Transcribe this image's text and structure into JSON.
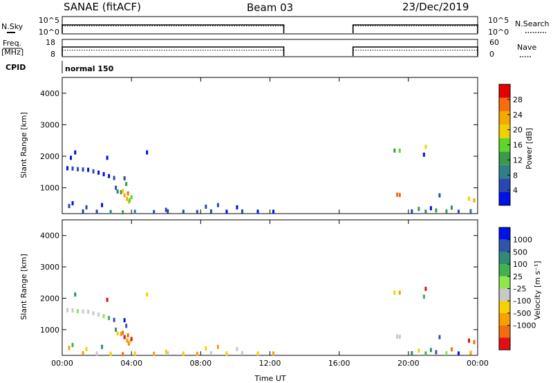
{
  "header": {
    "station": "SANAE (fitACF)",
    "beam": "Beam 03",
    "date": "23/Dec/2019"
  },
  "control_panels": {
    "nsky": {
      "label": "N.Sky",
      "yticks": [
        "10^5",
        "10^0"
      ]
    },
    "nsearch": {
      "label": "N.Search",
      "yticks": [
        "10^5",
        "10^0"
      ]
    },
    "freq": {
      "label_line1": "Freq.",
      "label_line2": "[MHz]",
      "yticks": [
        "18",
        "8"
      ]
    },
    "nave": {
      "label": "Nave",
      "yticks": [
        "60",
        "0"
      ]
    },
    "cpid": {
      "label": "CPID",
      "value": "normal 150"
    },
    "data_segments_hours": [
      [
        0,
        12.8
      ],
      [
        16.8,
        24
      ]
    ]
  },
  "colors": {
    "power_scale": [
      "#0010e8",
      "#2848b0",
      "#2f7f8a",
      "#3a9a4a",
      "#5ed62a",
      "#f0d000",
      "#f7a800",
      "#f56d0c",
      "#e60000"
    ],
    "velocity_scale": [
      "#0010e8",
      "#2f55a8",
      "#2f8a77",
      "#3fb14d",
      "#8ee84a",
      "#c8c8c8",
      "#f6d000",
      "#f7a000",
      "#f36d10",
      "#e30f0f"
    ]
  },
  "chart_data": [
    {
      "type": "heatmap",
      "name": "power",
      "xlabel": "",
      "ylabel": "Slant Range [km]",
      "xlim": [
        0,
        24
      ],
      "ylim": [
        180,
        4500
      ],
      "yticks": [
        1000,
        2000,
        3000,
        4000
      ],
      "colorbar": {
        "label": "Power [dB]",
        "ticks": [
          "4",
          "8",
          "12",
          "16",
          "20",
          "24",
          "28"
        ],
        "range": [
          0,
          32
        ]
      },
      "points": [
        [
          0.3,
          1620,
          3
        ],
        [
          0.6,
          1610,
          4
        ],
        [
          0.9,
          1590,
          5
        ],
        [
          1.2,
          1580,
          4
        ],
        [
          1.5,
          1570,
          3
        ],
        [
          1.8,
          1520,
          4
        ],
        [
          2.1,
          1480,
          3
        ],
        [
          2.4,
          1430,
          2
        ],
        [
          2.7,
          1370,
          3
        ],
        [
          3.0,
          1310,
          4
        ],
        [
          0.5,
          1950,
          2
        ],
        [
          0.75,
          2120,
          3
        ],
        [
          3.1,
          1000,
          6
        ],
        [
          3.2,
          880,
          10
        ],
        [
          3.4,
          860,
          14
        ],
        [
          3.5,
          900,
          18
        ],
        [
          3.6,
          760,
          22
        ],
        [
          3.75,
          650,
          24
        ],
        [
          3.85,
          560,
          20
        ],
        [
          3.9,
          600,
          16
        ],
        [
          3.7,
          1120,
          12
        ],
        [
          3.6,
          1300,
          6
        ],
        [
          3.8,
          820,
          26
        ],
        [
          4.0,
          700,
          15
        ],
        [
          4.9,
          2120,
          2
        ],
        [
          2.6,
          1950,
          3
        ],
        [
          0.4,
          420,
          5
        ],
        [
          0.6,
          510,
          3
        ],
        [
          1.4,
          380,
          4
        ],
        [
          2.3,
          450,
          3
        ],
        [
          1.2,
          250,
          6
        ],
        [
          2.0,
          240,
          4
        ],
        [
          2.8,
          230,
          8
        ],
        [
          3.5,
          220,
          12
        ],
        [
          4.2,
          240,
          9
        ],
        [
          5.3,
          230,
          7
        ],
        [
          6.1,
          250,
          5
        ],
        [
          7.0,
          240,
          4
        ],
        [
          7.8,
          230,
          6
        ],
        [
          8.6,
          250,
          4
        ],
        [
          9.5,
          240,
          3
        ],
        [
          10.4,
          250,
          4
        ],
        [
          11.3,
          240,
          3
        ],
        [
          12.2,
          240,
          2
        ],
        [
          8.3,
          400,
          5
        ],
        [
          9.0,
          450,
          4
        ],
        [
          10.1,
          380,
          3
        ],
        [
          6.0,
          300,
          4
        ],
        [
          19.2,
          2180,
          12
        ],
        [
          19.5,
          2180,
          15
        ],
        [
          19.35,
          780,
          26
        ],
        [
          19.5,
          770,
          28
        ],
        [
          21.0,
          2300,
          18
        ],
        [
          20.9,
          2050,
          3
        ],
        [
          21.8,
          760,
          4
        ],
        [
          22.5,
          370,
          8
        ],
        [
          23.5,
          650,
          18
        ],
        [
          23.8,
          600,
          22
        ],
        [
          20.2,
          250,
          5
        ],
        [
          21.0,
          240,
          8
        ],
        [
          21.6,
          280,
          11
        ],
        [
          22.2,
          250,
          14
        ],
        [
          22.9,
          240,
          6
        ],
        [
          23.6,
          260,
          9
        ],
        [
          20.6,
          330,
          12
        ],
        [
          21.3,
          350,
          3
        ]
      ]
    },
    {
      "type": "heatmap",
      "name": "velocity",
      "xlabel": "Time UT",
      "ylabel": "Slant Range [km]",
      "xlim": [
        0,
        24
      ],
      "ylim": [
        180,
        4500
      ],
      "yticks": [
        1000,
        2000,
        3000,
        4000
      ],
      "xticks": [
        "00:00",
        "04:00",
        "08:00",
        "12:00",
        "16:00",
        "20:00",
        "00:00"
      ],
      "xtick_hours": [
        0,
        4,
        8,
        12,
        16,
        20,
        24
      ],
      "colorbar": {
        "label": "Velocity [m s⁻¹]",
        "ticks": [
          "1000",
          "500",
          "100",
          "25",
          "–25",
          "–100",
          "–500",
          "–1000"
        ]
      },
      "points": [
        [
          0.3,
          1620,
          5
        ],
        [
          0.6,
          1610,
          5
        ],
        [
          0.9,
          1590,
          4
        ],
        [
          1.2,
          1580,
          5
        ],
        [
          1.5,
          1570,
          5
        ],
        [
          1.8,
          1520,
          5
        ],
        [
          2.1,
          1480,
          5
        ],
        [
          2.4,
          1430,
          4
        ],
        [
          2.7,
          1370,
          3
        ],
        [
          3.0,
          1310,
          1
        ],
        [
          0.75,
          2120,
          2
        ],
        [
          3.1,
          1000,
          2
        ],
        [
          3.2,
          880,
          6
        ],
        [
          3.4,
          860,
          7
        ],
        [
          3.5,
          900,
          8
        ],
        [
          3.6,
          760,
          9
        ],
        [
          3.75,
          650,
          7
        ],
        [
          3.85,
          560,
          8
        ],
        [
          3.9,
          600,
          6
        ],
        [
          3.7,
          1120,
          1
        ],
        [
          3.6,
          1300,
          0
        ],
        [
          3.8,
          820,
          8
        ],
        [
          4.0,
          700,
          9
        ],
        [
          4.9,
          2120,
          6
        ],
        [
          2.6,
          1950,
          9
        ],
        [
          0.4,
          420,
          7
        ],
        [
          0.6,
          510,
          3
        ],
        [
          1.4,
          380,
          6
        ],
        [
          2.3,
          450,
          2
        ],
        [
          1.2,
          250,
          7
        ],
        [
          2.0,
          240,
          5
        ],
        [
          2.8,
          230,
          6
        ],
        [
          3.5,
          220,
          8
        ],
        [
          4.2,
          240,
          6
        ],
        [
          5.3,
          230,
          7
        ],
        [
          6.1,
          250,
          5
        ],
        [
          7.0,
          240,
          6
        ],
        [
          7.8,
          230,
          7
        ],
        [
          8.6,
          250,
          5
        ],
        [
          9.5,
          240,
          6
        ],
        [
          10.4,
          250,
          5
        ],
        [
          11.3,
          240,
          6
        ],
        [
          12.2,
          240,
          7
        ],
        [
          8.3,
          400,
          6
        ],
        [
          9.0,
          450,
          7
        ],
        [
          10.1,
          380,
          5
        ],
        [
          6.0,
          300,
          6
        ],
        [
          19.2,
          2180,
          6
        ],
        [
          19.5,
          2180,
          7
        ],
        [
          19.35,
          780,
          5
        ],
        [
          19.5,
          770,
          5
        ],
        [
          21.0,
          2300,
          9
        ],
        [
          20.9,
          2050,
          3
        ],
        [
          21.8,
          760,
          1
        ],
        [
          22.5,
          370,
          8
        ],
        [
          23.5,
          650,
          9
        ],
        [
          23.8,
          600,
          8
        ],
        [
          20.2,
          250,
          2
        ],
        [
          21.0,
          240,
          3
        ],
        [
          21.6,
          280,
          1
        ],
        [
          22.2,
          250,
          4
        ],
        [
          22.9,
          240,
          0
        ],
        [
          23.6,
          260,
          7
        ],
        [
          20.6,
          330,
          6
        ],
        [
          21.3,
          350,
          2
        ]
      ]
    }
  ]
}
